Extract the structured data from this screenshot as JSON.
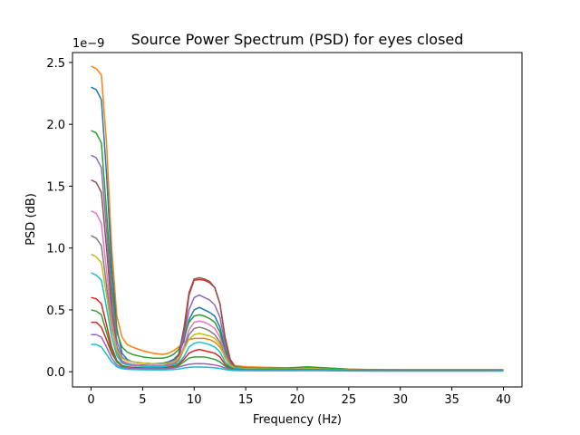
{
  "chart_data": {
    "type": "line",
    "title": "Source Power Spectrum (PSD) for eyes closed",
    "xlabel": "Frequency (Hz)",
    "ylabel": "PSD (dB)",
    "y_offset_label": "1e−9",
    "xlim": [
      -1.8,
      41.8
    ],
    "ylim": [
      -1.23e-10,
      2.58e-09
    ],
    "x_ticks": [
      0,
      5,
      10,
      15,
      20,
      25,
      30,
      35,
      40
    ],
    "x_tick_labels": [
      "0",
      "5",
      "10",
      "15",
      "20",
      "25",
      "30",
      "35",
      "40"
    ],
    "y_ticks": [
      0,
      5e-10,
      1e-09,
      1.5e-09,
      2e-09,
      2.5e-09
    ],
    "y_tick_labels": [
      "0.0",
      "0.5",
      "1.0",
      "1.5",
      "2.0",
      "2.5"
    ],
    "grid": false,
    "legend": "none",
    "x": [
      0,
      0.5,
      1,
      1.5,
      2,
      2.5,
      3,
      3.5,
      4,
      5,
      6,
      7,
      7.5,
      8,
      8.5,
      9,
      9.5,
      10,
      10.5,
      11,
      11.5,
      12,
      12.5,
      13,
      13.5,
      14,
      15,
      17,
      19,
      21,
      23,
      25,
      27,
      30,
      35,
      40
    ],
    "series": [
      {
        "color": "#d62728",
        "values": [
          4e-10,
          4e-10,
          3.6e-10,
          2.6e-10,
          1.5e-10,
          8e-11,
          4.5e-11,
          3.5e-11,
          3e-11,
          2.8e-11,
          2.8e-11,
          3e-11,
          3.5e-11,
          5e-11,
          1e-10,
          3e-10,
          6.2e-10,
          7.4e-10,
          7.45e-10,
          7.4e-10,
          7.2e-10,
          6.8e-10,
          5.5e-10,
          2.8e-10,
          1e-10,
          4e-11,
          2.5e-11,
          2.3e-11,
          2.2e-11,
          2.4e-11,
          2e-11,
          1.4e-11,
          1.2e-11,
          1.2e-11,
          1.2e-11,
          1.2e-11
        ]
      },
      {
        "color": "#ff7f0e",
        "values": [
          2.47e-09,
          2.45e-09,
          2.4e-09,
          1.85e-09,
          1e-09,
          4.5e-10,
          2.8e-10,
          2.2e-10,
          2e-10,
          1.7e-10,
          1.5e-10,
          1.4e-10,
          1.5e-10,
          1.7e-10,
          2e-10,
          2.4e-10,
          2.6e-10,
          2.7e-10,
          2.7e-10,
          2.7e-10,
          2.6e-10,
          2.4e-10,
          2e-10,
          1.2e-10,
          7e-11,
          5e-11,
          4e-11,
          3.5e-11,
          3.2e-11,
          3.5e-11,
          3e-11,
          2.2e-11,
          1.8e-11,
          1.7e-11,
          1.7e-11,
          1.7e-11
        ]
      },
      {
        "color": "#1f77b4",
        "values": [
          2.3e-09,
          2.28e-09,
          2.2e-09,
          1.6e-09,
          8.5e-10,
          3.5e-10,
          1.5e-10,
          1e-10,
          8e-11,
          7e-11,
          6.5e-11,
          7e-11,
          8e-11,
          1e-10,
          1.4e-10,
          2.5e-10,
          4.2e-10,
          5e-10,
          5.2e-10,
          5e-10,
          4.8e-10,
          4.5e-10,
          3.6e-10,
          1.8e-10,
          7e-11,
          3.5e-11,
          2.5e-11,
          2.2e-11,
          2e-11,
          2.2e-11,
          1.8e-11,
          1.3e-11,
          1.1e-11,
          1.1e-11,
          1.1e-11,
          1.1e-11
        ]
      },
      {
        "color": "#2ca02c",
        "values": [
          1.95e-09,
          1.93e-09,
          1.85e-09,
          1.3e-09,
          7e-10,
          3.2e-10,
          2e-10,
          1.6e-10,
          1.4e-10,
          1.2e-10,
          1.1e-10,
          1.1e-10,
          1.2e-10,
          1.4e-10,
          1.8e-10,
          2.8e-10,
          4e-10,
          4.5e-10,
          4.6e-10,
          4.5e-10,
          4.3e-10,
          4e-10,
          3.2e-10,
          1.6e-10,
          7e-11,
          4e-11,
          3e-11,
          2.8e-11,
          3e-11,
          4e-11,
          3e-11,
          2e-11,
          1.6e-11,
          1.5e-11,
          1.5e-11,
          1.5e-11
        ]
      },
      {
        "color": "#9467bd",
        "values": [
          1.75e-09,
          1.73e-09,
          1.65e-09,
          1.15e-09,
          6e-10,
          2.5e-10,
          1.2e-10,
          9e-11,
          8e-11,
          7e-11,
          6.5e-11,
          6.5e-11,
          7e-11,
          9e-11,
          1.3e-10,
          2.8e-10,
          5e-10,
          6e-10,
          6.2e-10,
          6e-10,
          5.8e-10,
          5.4e-10,
          4.4e-10,
          2.2e-10,
          8e-11,
          3.5e-11,
          2.5e-11,
          2.2e-11,
          2e-11,
          2.2e-11,
          1.8e-11,
          1.3e-11,
          1.1e-11,
          1.1e-11,
          1.1e-11,
          1.1e-11
        ]
      },
      {
        "color": "#8c564b",
        "values": [
          1.55e-09,
          1.53e-09,
          1.45e-09,
          1e-09,
          5e-10,
          2e-10,
          9e-11,
          7e-11,
          6e-11,
          5.5e-11,
          5e-11,
          5e-11,
          6e-11,
          8e-11,
          1.4e-10,
          3.5e-10,
          6.4e-10,
          7.5e-10,
          7.6e-10,
          7.5e-10,
          7.3e-10,
          6.8e-10,
          5.5e-10,
          2.7e-10,
          9e-11,
          3.5e-11,
          2.2e-11,
          2e-11,
          1.9e-11,
          2.1e-11,
          1.7e-11,
          1.2e-11,
          1e-11,
          1e-11,
          1e-11,
          1e-11
        ]
      },
      {
        "color": "#e377c2",
        "values": [
          1.3e-09,
          1.28e-09,
          1.2e-09,
          8.2e-10,
          4.2e-10,
          1.8e-10,
          9e-11,
          7e-11,
          6e-11,
          5e-11,
          4.8e-11,
          5e-11,
          5.5e-11,
          7e-11,
          1e-10,
          2e-10,
          3.4e-10,
          4e-10,
          4.1e-10,
          4e-10,
          3.8e-10,
          3.5e-10,
          2.8e-10,
          1.4e-10,
          5.5e-11,
          3e-11,
          2.2e-11,
          2e-11,
          1.9e-11,
          2.1e-11,
          1.7e-11,
          1.2e-11,
          1e-11,
          1e-11,
          1e-11,
          1e-11
        ]
      },
      {
        "color": "#7f7f7f",
        "values": [
          1.1e-09,
          1.08e-09,
          1.02e-09,
          7e-10,
          3.6e-10,
          1.6e-10,
          8e-11,
          6e-11,
          5e-11,
          4.5e-11,
          4.2e-11,
          4.2e-11,
          5e-11,
          6e-11,
          9e-11,
          1.8e-10,
          3e-10,
          3.5e-10,
          3.6e-10,
          3.5e-10,
          3.3e-10,
          3e-10,
          2.4e-10,
          1.2e-10,
          5e-11,
          2.8e-11,
          2e-11,
          1.8e-11,
          1.8e-11,
          2e-11,
          1.6e-11,
          1.1e-11,
          1e-11,
          1e-11,
          1e-11,
          1e-11
        ]
      },
      {
        "color": "#bcbd22",
        "values": [
          9.5e-10,
          9.3e-10,
          8.8e-10,
          6.2e-10,
          3.4e-10,
          1.7e-10,
          1.1e-10,
          9e-11,
          8e-11,
          7e-11,
          6.5e-11,
          6.5e-11,
          7e-11,
          8e-11,
          1.1e-10,
          1.8e-10,
          2.6e-10,
          3e-10,
          3.1e-10,
          3e-10,
          2.9e-10,
          2.7e-10,
          2.2e-10,
          1.1e-10,
          5e-11,
          3e-11,
          2.4e-11,
          2.2e-11,
          2.2e-11,
          2.5e-11,
          2e-11,
          1.4e-11,
          1.2e-11,
          1.2e-11,
          1.2e-11,
          1.2e-11
        ]
      },
      {
        "color": "#17becf",
        "values": [
          8e-10,
          7.8e-10,
          7.4e-10,
          5.2e-10,
          2.8e-10,
          1.3e-10,
          7e-11,
          5.5e-11,
          5e-11,
          4.5e-11,
          4.2e-11,
          4.2e-11,
          4.5e-11,
          5.5e-11,
          7e-11,
          1.2e-10,
          2e-10,
          2.3e-10,
          2.4e-10,
          2.3e-10,
          2.2e-10,
          2e-10,
          1.6e-10,
          8e-11,
          4e-11,
          2.5e-11,
          2e-11,
          1.8e-11,
          1.8e-11,
          2e-11,
          1.6e-11,
          1.1e-11,
          1e-11,
          1e-11,
          1e-11,
          1e-11
        ]
      },
      {
        "color": "#d62728",
        "values": [
          6e-10,
          5.9e-10,
          5.5e-10,
          3.8e-10,
          2e-10,
          9e-11,
          5e-11,
          4e-11,
          3.5e-11,
          3.2e-11,
          3e-11,
          3e-11,
          3.5e-11,
          4e-11,
          6e-11,
          1e-10,
          1.5e-10,
          1.7e-10,
          1.8e-10,
          1.7e-10,
          1.6e-10,
          1.5e-10,
          1.2e-10,
          6e-11,
          3e-11,
          2e-11,
          1.6e-11,
          1.5e-11,
          1.5e-11,
          1.7e-11,
          1.4e-11,
          1e-11,
          9e-12,
          9e-12,
          9e-12,
          9e-12
        ]
      },
      {
        "color": "#2ca02c",
        "values": [
          5e-10,
          4.9e-10,
          4.6e-10,
          3.2e-10,
          1.7e-10,
          8e-11,
          4.5e-11,
          3.5e-11,
          3e-11,
          2.8e-11,
          2.7e-11,
          2.7e-11,
          3e-11,
          3.5e-11,
          5e-11,
          8e-11,
          1.1e-10,
          1.2e-10,
          1.2e-10,
          1.2e-10,
          1.1e-10,
          1e-10,
          8e-11,
          4.5e-11,
          2.5e-11,
          1.8e-11,
          1.5e-11,
          1.4e-11,
          1.4e-11,
          1.6e-11,
          1.3e-11,
          9e-12,
          8e-12,
          8e-12,
          8e-12,
          8e-12
        ]
      },
      {
        "color": "#9467bd",
        "values": [
          3e-10,
          3e-10,
          2.8e-10,
          2e-10,
          1.1e-10,
          5.5e-11,
          3.5e-11,
          3e-11,
          2.7e-11,
          2.5e-11,
          2.4e-11,
          2.4e-11,
          2.6e-11,
          3e-11,
          3.8e-11,
          5e-11,
          6e-11,
          6.5e-11,
          6.6e-11,
          6.5e-11,
          6e-11,
          5.5e-11,
          4.5e-11,
          3e-11,
          2e-11,
          1.5e-11,
          1.3e-11,
          1.2e-11,
          1.2e-11,
          1.4e-11,
          1.1e-11,
          8e-12,
          7e-12,
          7e-12,
          7e-12,
          7e-12
        ]
      },
      {
        "color": "#17becf",
        "values": [
          2.2e-10,
          2.2e-10,
          2e-10,
          1.4e-10,
          8e-11,
          4e-11,
          2.5e-11,
          2e-11,
          1.8e-11,
          1.6e-11,
          1.5e-11,
          1.5e-11,
          1.6e-11,
          1.8e-11,
          2.2e-11,
          3e-11,
          3.5e-11,
          3.8e-11,
          3.8e-11,
          3.7e-11,
          3.5e-11,
          3.2e-11,
          2.7e-11,
          1.8e-11,
          1.2e-11,
          1e-11,
          9e-12,
          8e-12,
          8e-12,
          9e-12,
          8e-12,
          6e-12,
          5e-12,
          5e-12,
          5e-12,
          5e-12
        ]
      }
    ]
  }
}
